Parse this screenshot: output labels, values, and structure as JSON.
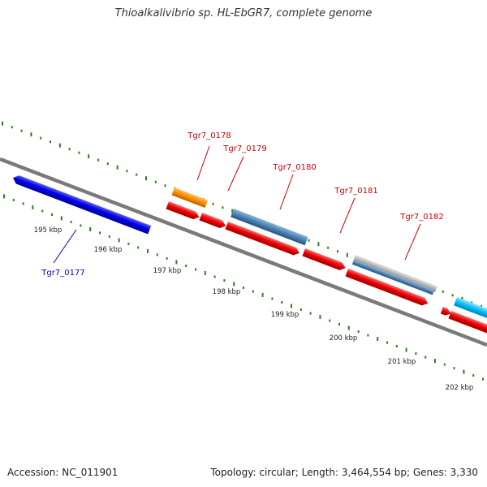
{
  "header": {
    "title": "Thioalkalivibrio sp. HL-EbGR7, complete genome"
  },
  "footer": {
    "accession": "Accession: NC_011901",
    "summary": "Topology: circular; Length: 3,464,554 bp; Genes: 3,330"
  },
  "scale_labels": [
    "195 kbp",
    "196 kbp",
    "197 kbp",
    "198 kbp",
    "199 kbp",
    "200 kbp",
    "201 kbp",
    "202 kbp"
  ],
  "gene_labels": [
    {
      "name": "Tgr7_0177",
      "color": "#0000cc"
    },
    {
      "name": "Tgr7_0178",
      "color": "#cc0000"
    },
    {
      "name": "Tgr7_0179",
      "color": "#cc0000"
    },
    {
      "name": "Tgr7_0180",
      "color": "#cc0000"
    },
    {
      "name": "Tgr7_0181",
      "color": "#cc0000"
    },
    {
      "name": "Tgr7_0182",
      "color": "#cc0000"
    }
  ],
  "colors": {
    "backbone": "#7a7a7a",
    "ticks": "#2e7d1e",
    "cds_red": "#ee0000",
    "gene_blue": "#0000ee",
    "orange": "#ff8c00",
    "steelblue": "#4682b4",
    "gray": "#b5b5b5",
    "cyan": "#00bfff"
  }
}
